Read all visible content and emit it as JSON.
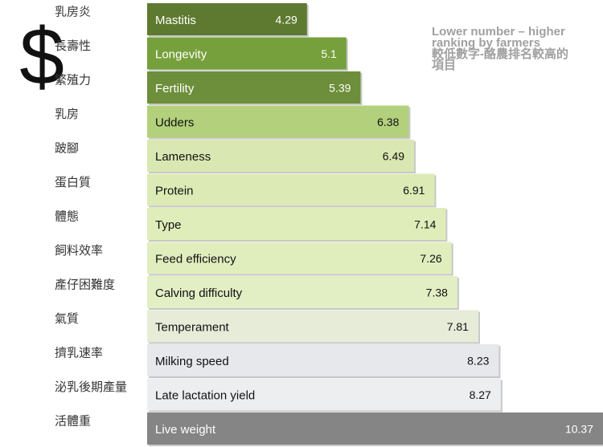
{
  "chart_data": {
    "type": "bar",
    "orientation": "horizontal",
    "symbol": "$",
    "annotation": [
      "Lower number – higher",
      "ranking by farmers",
      "較低數字-酪農排名較高的",
      "項目"
    ],
    "categories": [
      "Mastitis",
      "Longevity",
      "Fertility",
      "Udders",
      "Lameness",
      "Protein",
      "Type",
      "Feed efficiency",
      "Calving difficulty",
      "Temperament",
      "Milking speed",
      "Late lactation yield",
      "Live weight"
    ],
    "categories_zh": [
      "乳房炎",
      "長壽性",
      "繁殖力",
      "乳房",
      "跛腳",
      "蛋白質",
      "體態",
      "飼料效率",
      "產仔困難度",
      "氣質",
      "擠乳速率",
      "泌乳後期產量",
      "活體重"
    ],
    "values": [
      4.29,
      5.1,
      5.39,
      6.38,
      6.49,
      6.91,
      7.14,
      7.26,
      7.38,
      7.81,
      8.23,
      8.27,
      10.37
    ],
    "colors": [
      "#5e7a30",
      "#76a03c",
      "#6d8e3a",
      "#b3d07c",
      "#d9e8b2",
      "#dcebb6",
      "#dfedba",
      "#e0eebe",
      "#e2eec4",
      "#e6ecd8",
      "#e6e8ec",
      "#eceef0",
      "#858585"
    ],
    "text_colors": [
      "#fff",
      "#fff",
      "#fff",
      "#111",
      "#111",
      "#111",
      "#111",
      "#111",
      "#111",
      "#111",
      "#111",
      "#111",
      "#fff"
    ]
  }
}
